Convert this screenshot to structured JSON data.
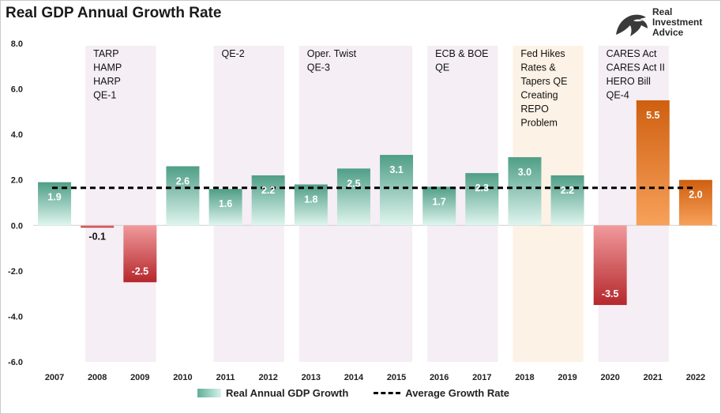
{
  "title": "Real GDP Annual Growth Rate",
  "logo": {
    "line1": "Real",
    "line2": "Investment",
    "line3": "Advice"
  },
  "legend": {
    "growth": "Real Annual GDP Growth",
    "average": "Average Growth Rate"
  },
  "colors": {
    "positive_dark": "#4f9e86",
    "positive_light": "#dff5ee",
    "negative_dark": "#b5282c",
    "negative_light": "#f09a9c",
    "orange_dark": "#cf5f10",
    "orange_light": "#f7a15a",
    "shade_purple": "#f5eef4",
    "shade_orange": "#fdf2e6"
  },
  "chart_data": {
    "type": "bar",
    "title": "Real GDP Annual Growth Rate",
    "categories": [
      "2007",
      "2008",
      "2009",
      "2010",
      "2011",
      "2012",
      "2013",
      "2014",
      "2015",
      "2016",
      "2017",
      "2018",
      "2019",
      "2020",
      "2021",
      "2022"
    ],
    "series": [
      {
        "name": "Real Annual GDP Growth",
        "values": [
          1.9,
          -0.1,
          -2.5,
          2.6,
          1.6,
          2.2,
          1.8,
          2.5,
          3.1,
          1.7,
          2.3,
          3.0,
          2.2,
          -3.5,
          5.5,
          2.0
        ],
        "labels": [
          "1.9",
          "-0.1",
          "-2.5",
          "2.6",
          "1.6",
          "2.2",
          "1.8",
          "2.5",
          "3.1",
          "1.7",
          "2.3",
          "3.0",
          "2.2",
          "-3.5",
          "5.5",
          "2.0"
        ]
      }
    ],
    "average": {
      "name": "Average Growth Rate",
      "value": 1.65
    },
    "ylim": [
      -6.0,
      8.0
    ],
    "yticks": [
      -6,
      -4,
      -2,
      0,
      2,
      4,
      6,
      8
    ],
    "ytick_labels": [
      "-6.0",
      "-4.0",
      "-2.0",
      "0.0",
      "2.0",
      "4.0",
      "6.0",
      "8.0"
    ],
    "xlabel": "",
    "ylabel": "",
    "annotations": [
      {
        "from": "2008",
        "to": "2009",
        "shade": "purple",
        "lines": [
          "TARP",
          "HAMP",
          "HARP",
          "QE-1"
        ]
      },
      {
        "from": "2011",
        "to": "2012",
        "shade": "purple",
        "lines": [
          "QE-2"
        ]
      },
      {
        "from": "2013",
        "to": "2015",
        "shade": "purple",
        "lines": [
          "Oper. Twist",
          "QE-3"
        ]
      },
      {
        "from": "2016",
        "to": "2017",
        "shade": "purple",
        "lines": [
          "ECB & BOE",
          "QE"
        ]
      },
      {
        "from": "2018",
        "to": "2019",
        "shade": "orange",
        "lines": [
          "Fed Hikes",
          "Rates &",
          "Tapers QE",
          "Creating",
          "REPO",
          "Problem"
        ]
      },
      {
        "from": "2020",
        "to": "2021",
        "shade": "purple",
        "lines": [
          "CARES Act",
          "CARES Act II",
          "HERO Bill",
          "QE-4"
        ]
      }
    ],
    "legend_position": "bottom"
  }
}
